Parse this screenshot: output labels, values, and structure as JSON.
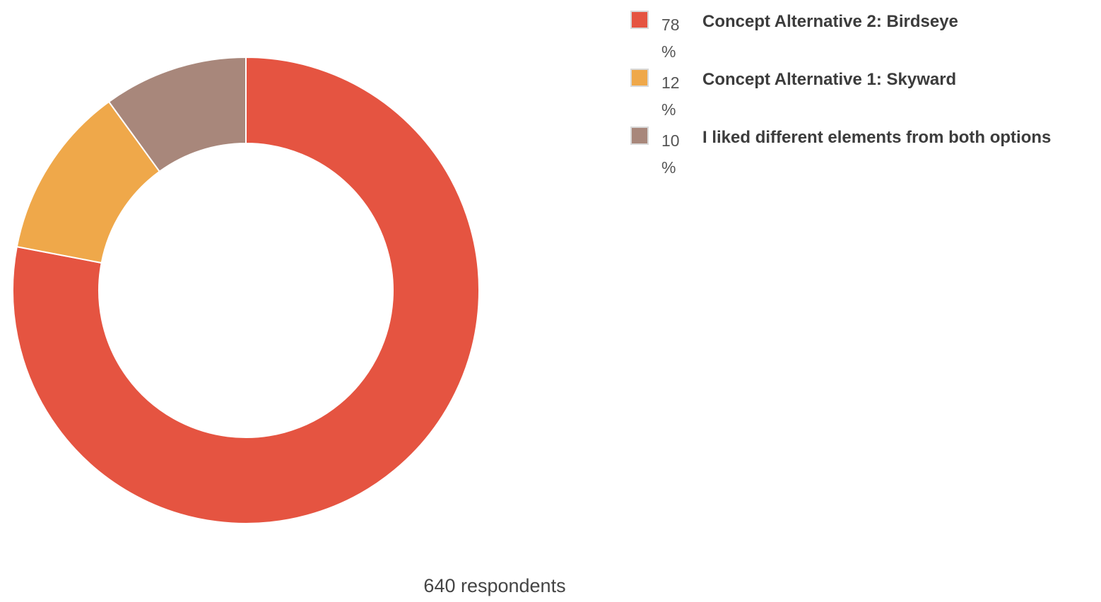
{
  "chart_data": {
    "type": "pie",
    "variant": "donut",
    "slices": [
      {
        "label": "Concept Alternative 2: Birdseye",
        "value": 78,
        "pct_text": "78 %",
        "color": "#e55441"
      },
      {
        "label": "Concept Alternative 1: Skyward",
        "value": 12,
        "pct_text": "12 %",
        "color": "#efa84a"
      },
      {
        "label": "I liked different elements from both options",
        "value": 10,
        "pct_text": "10 %",
        "color": "#a8877b"
      }
    ],
    "legend_position": "top-right",
    "start_angle": "12 o'clock",
    "direction": "clockwise"
  },
  "footer": {
    "respondents": "640 respondents"
  }
}
